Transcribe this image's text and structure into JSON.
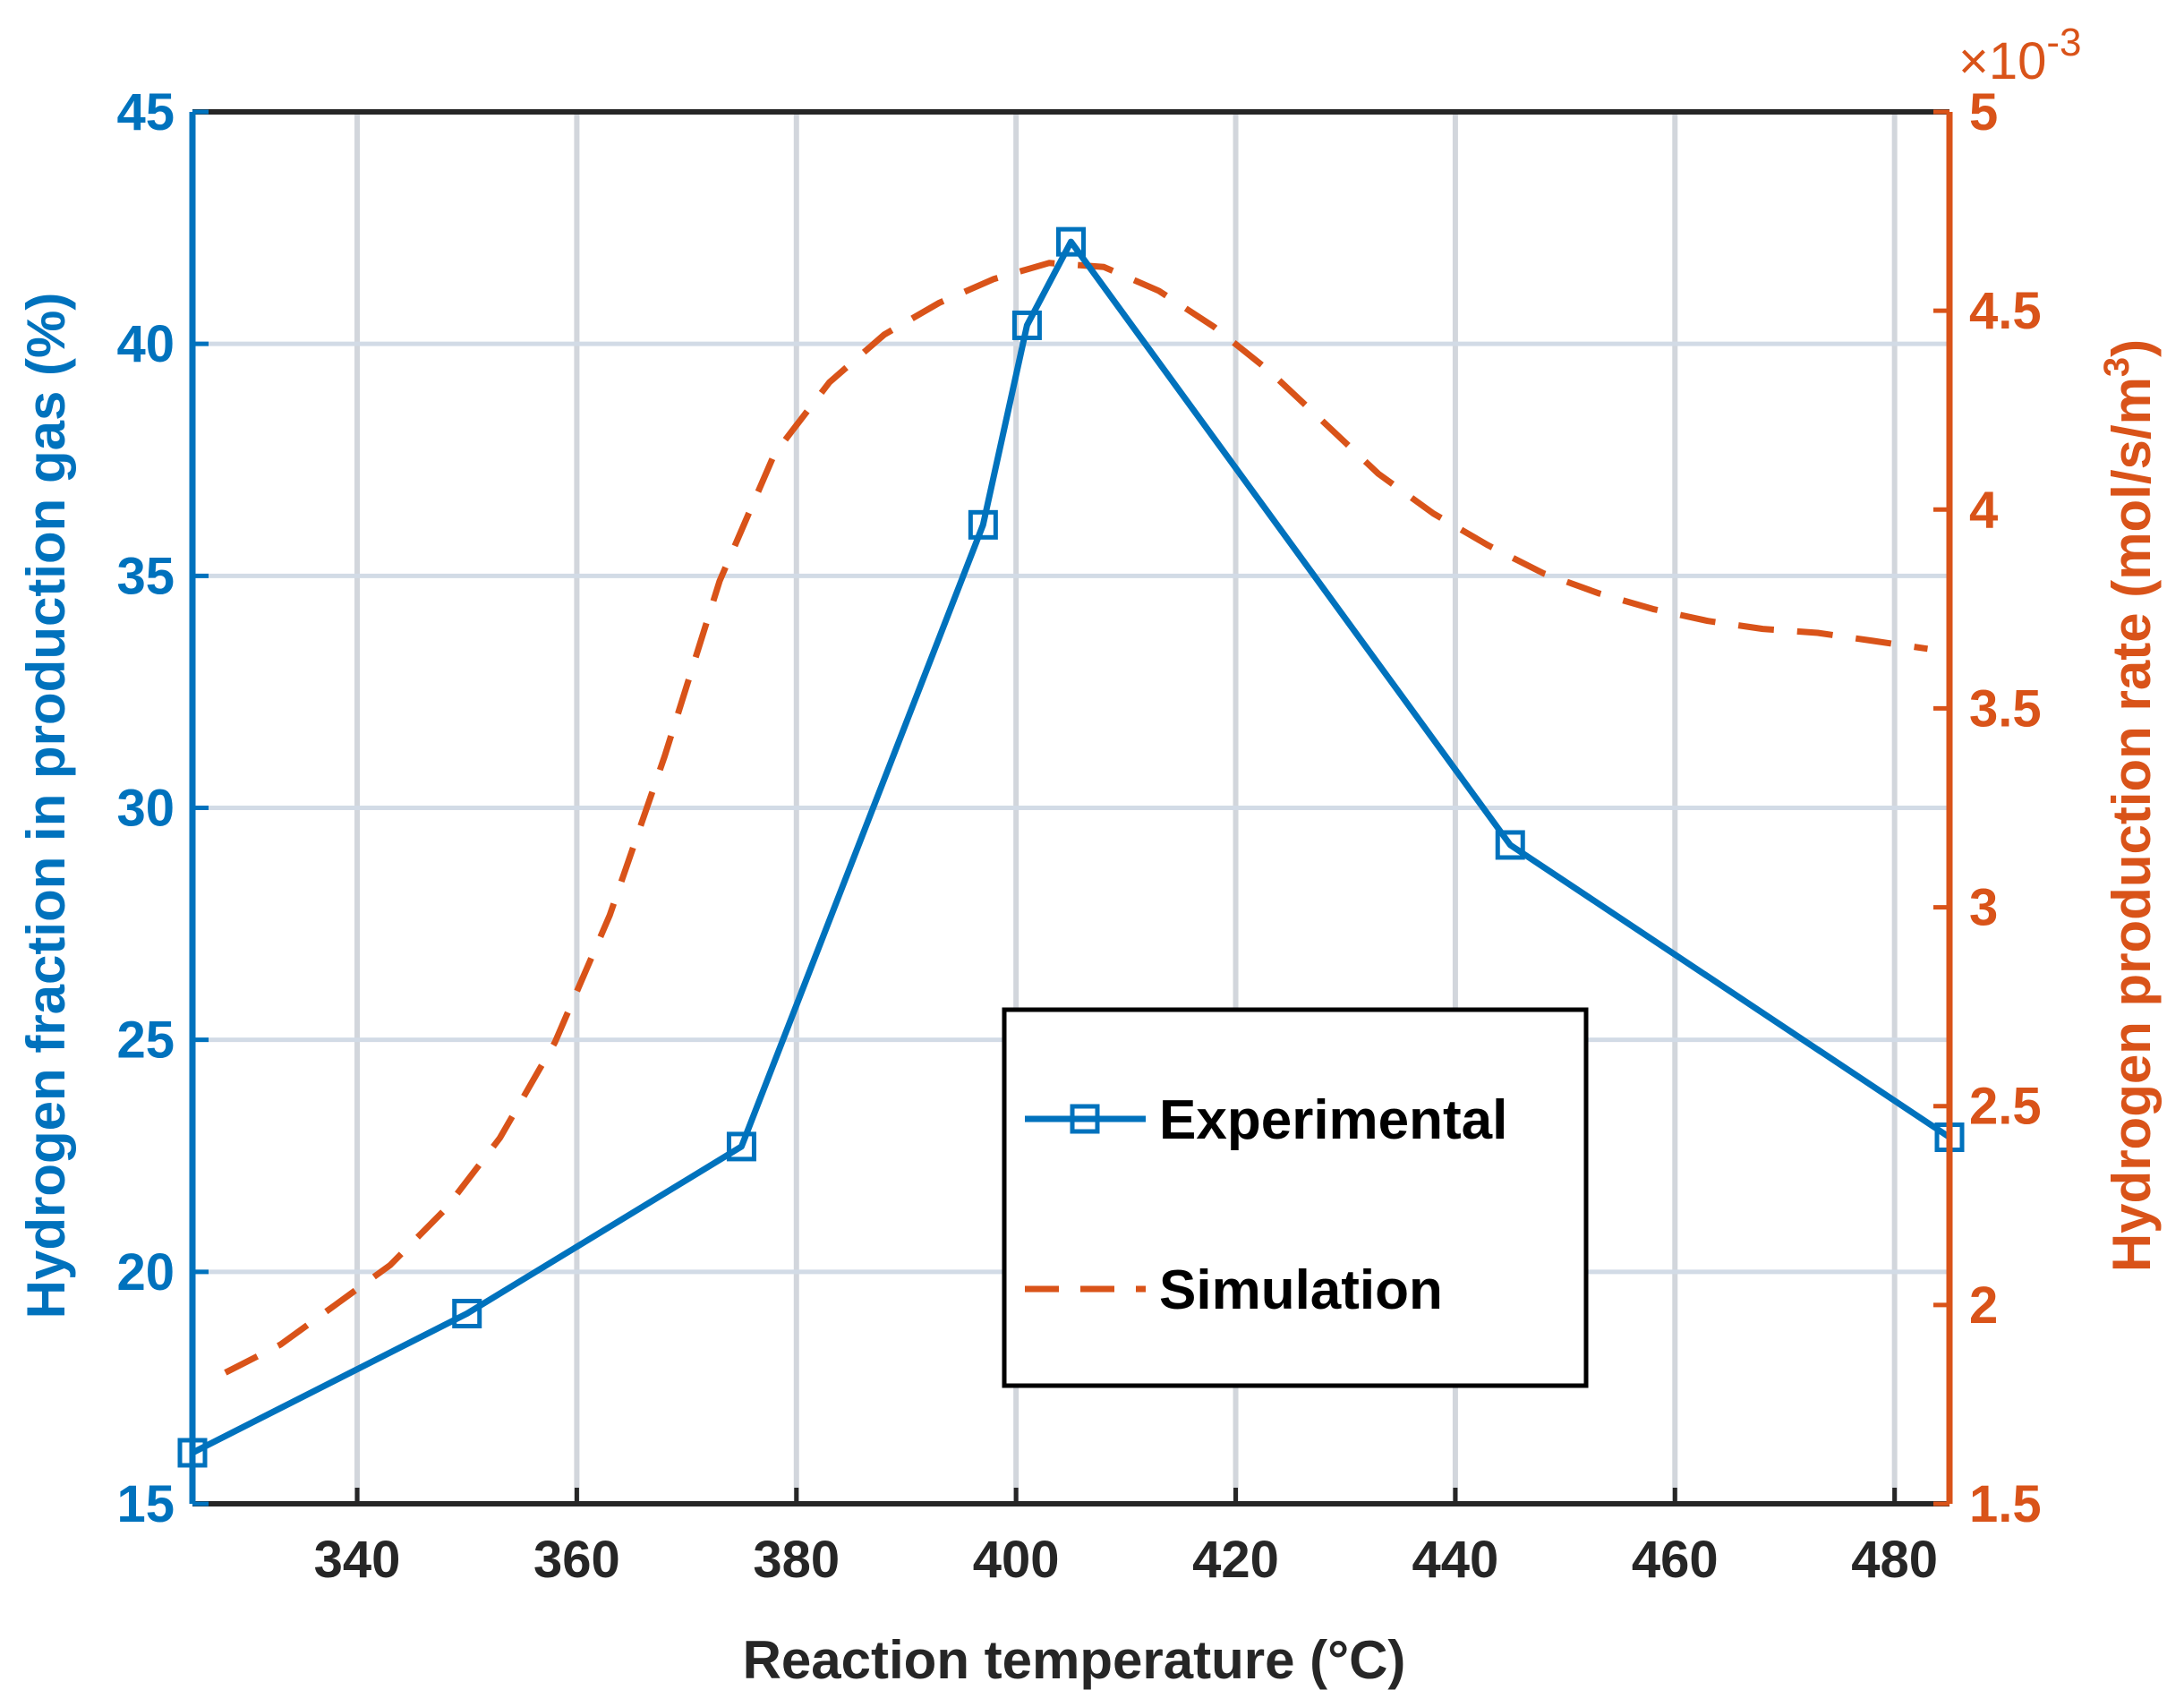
{
  "chart_data": {
    "type": "line",
    "title": "",
    "xlabel": "Reaction temperature (°C)",
    "xlim": [
      325,
      485
    ],
    "x_ticks": [
      "340",
      "360",
      "380",
      "400",
      "420",
      "440",
      "460",
      "480"
    ],
    "y_left": {
      "label": "Hydrogen fraction in production gas (%)",
      "lim": [
        15,
        45
      ],
      "ticks": [
        "15",
        "20",
        "25",
        "30",
        "35",
        "40",
        "45"
      ],
      "color": "#0072BD"
    },
    "y_right": {
      "label_main": "Hydrogen production rate (mol/s/m",
      "label_sup": "3",
      "label_close": ")",
      "lim": [
        1.5,
        5
      ],
      "ticks": [
        "1.5",
        "2",
        "2.5",
        "3",
        "3.5",
        "4",
        "4.5",
        "5"
      ],
      "exponent_base": "×10",
      "exponent_power": "-3",
      "color": "#D95319"
    },
    "series": [
      {
        "name": "Experimental",
        "axis": "left",
        "style": "solid-square-markers",
        "color": "#0072BD",
        "x": [
          325,
          350,
          375,
          397,
          401,
          405,
          445,
          485
        ],
        "y": [
          16.1,
          19.1,
          22.7,
          36.1,
          40.4,
          42.2,
          29.2,
          22.9
        ]
      },
      {
        "name": "Simulation",
        "axis": "right",
        "style": "dashed",
        "color": "#D95319",
        "x": [
          328,
          333,
          338,
          343,
          348,
          353,
          358,
          363,
          368,
          373,
          378,
          383,
          388,
          393,
          398,
          403,
          408,
          413,
          418,
          423,
          428,
          433,
          438,
          443,
          448,
          453,
          458,
          463,
          468,
          473,
          478,
          483
        ],
        "y": [
          1.83,
          1.9,
          2.0,
          2.1,
          2.24,
          2.42,
          2.66,
          2.98,
          3.38,
          3.82,
          4.14,
          4.32,
          4.44,
          4.52,
          4.58,
          4.62,
          4.61,
          4.55,
          4.46,
          4.35,
          4.22,
          4.09,
          3.99,
          3.91,
          3.84,
          3.79,
          3.75,
          3.72,
          3.7,
          3.69,
          3.67,
          3.65
        ]
      }
    ],
    "legend": {
      "position": "center-bottom",
      "entries": [
        "Experimental",
        "Simulation"
      ]
    },
    "grid": true
  }
}
